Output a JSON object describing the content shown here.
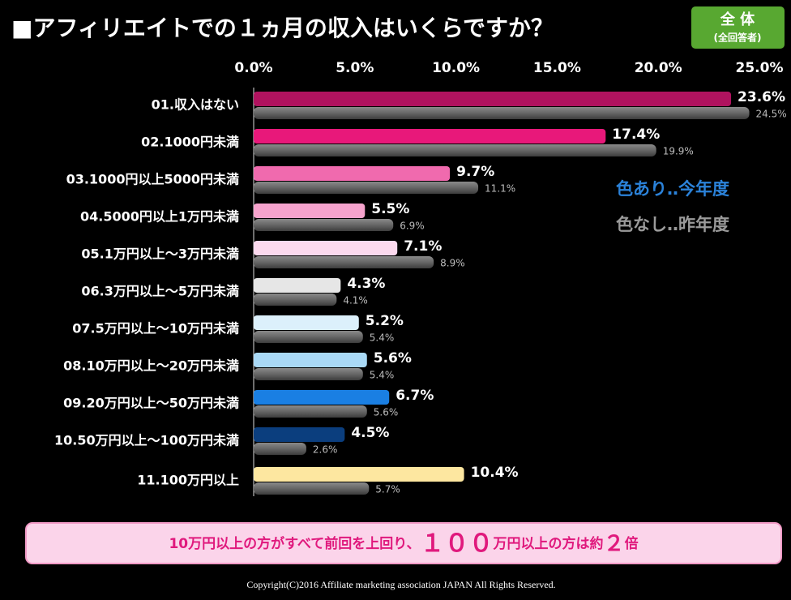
{
  "chart_data": {
    "type": "hbar",
    "title": "■アフィリエイトでの１ヵ月の収入はいくらですか？",
    "badge": [
      "全 体",
      "(全回答者)"
    ],
    "categories": [
      "01.収入はない",
      "02.1000円未満",
      "03.1000円以上5000円未満",
      "04.5000円以上1万円未満",
      "05.1万円以上～3万円未満",
      "06.3万円以上～5万円未満",
      "07.5万円以上～10万円未満",
      "08.10万円以上～20万円未満",
      "09.20万円以上～50万円未満",
      "10.50万円以上～100万円未満",
      "11.100万円以上"
    ],
    "series": [
      {
        "name": "色あり‥今年度",
        "color": "#2b82d9",
        "colors": [
          "#b0135f",
          "#e8187a",
          "#f06aae",
          "#f6a3cd",
          "#fcd9ee",
          "#e6e6e6",
          "#dcf0fb",
          "#a9d9f6",
          "#1a7fe3",
          "#0b3e7e",
          "#fde7a0"
        ],
        "values": [
          23.6,
          17.4,
          9.7,
          5.5,
          7.1,
          4.3,
          5.2,
          5.6,
          6.7,
          4.5,
          10.4
        ],
        "value_labels": [
          "23.6%",
          "17.4%",
          "9.7%",
          "5.5%",
          "7.1%",
          "4.3%",
          "5.2%",
          "5.6%",
          "6.7%",
          "4.5%",
          "10.4%"
        ]
      },
      {
        "name": "色なし‥昨年度",
        "color": "#9a9a9a",
        "values": [
          24.5,
          19.9,
          11.1,
          6.9,
          8.9,
          4.1,
          5.4,
          5.4,
          5.6,
          2.6,
          5.7
        ],
        "value_labels": [
          "24.5%",
          "19.9%",
          "11.1%",
          "6.9%",
          "8.9%",
          "4.1%",
          "5.4%",
          "5.4%",
          "5.6%",
          "2.6%",
          "5.7%"
        ]
      }
    ],
    "xlim": [
      0,
      25
    ],
    "xticks": [
      {
        "value": 0,
        "label": "0.0%"
      },
      {
        "value": 5,
        "label": "5.0%"
      },
      {
        "value": 10,
        "label": "10.0%"
      },
      {
        "value": 15,
        "label": "15.0%"
      },
      {
        "value": 20,
        "label": "20.0%"
      },
      {
        "value": 25,
        "label": "25.0%"
      }
    ],
    "annotation": [
      "10万円以上の方がすべて前回を上回り、",
      "１００",
      "万円以上の方は約",
      "２",
      "倍"
    ],
    "footer": "Copyright(C)2016  Affiliate marketing  association JAPAN  All Rights Reserved."
  }
}
